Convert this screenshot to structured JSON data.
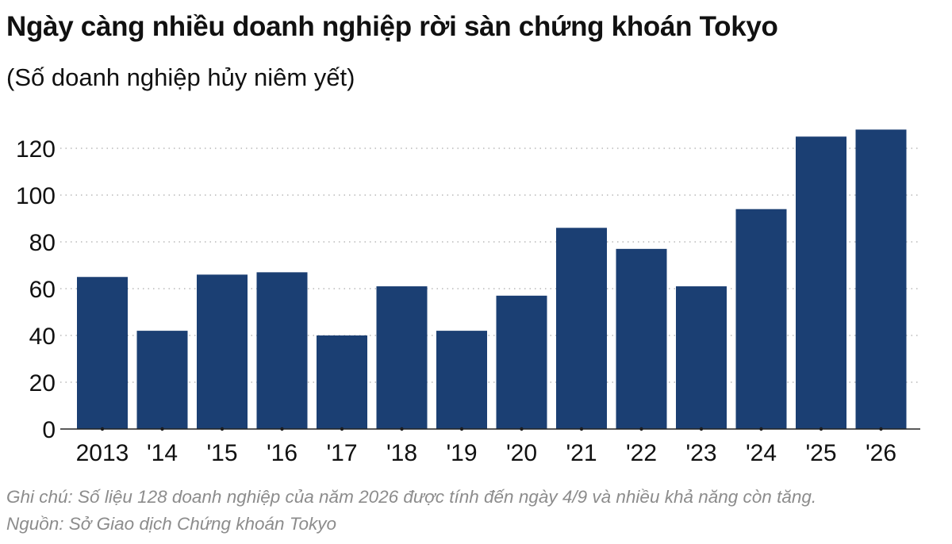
{
  "chart_data": {
    "type": "bar",
    "title": "Ngày càng nhiều doanh nghiệp rời sàn chứng khoán Tokyo",
    "subtitle": "(Số doanh nghiệp hủy niêm yết)",
    "categories": [
      "2013",
      "'14",
      "'15",
      "'16",
      "'17",
      "'18",
      "'19",
      "'20",
      "'21",
      "'22",
      "'23",
      "'24",
      "'25",
      "'26"
    ],
    "values": [
      65,
      42,
      66,
      67,
      40,
      61,
      42,
      57,
      86,
      77,
      61,
      94,
      125,
      128
    ],
    "xlabel": "",
    "ylabel": "",
    "ylim": [
      0,
      130
    ],
    "yticks": [
      0,
      20,
      40,
      60,
      80,
      100,
      120
    ],
    "grid": "horizontal dotted",
    "bar_color": "#1b3f73",
    "note": "Ghi chú: Số liệu 128 doanh nghiệp của năm 2026 được tính đến ngày 4/9 và nhiều khả năng còn tăng.",
    "source": "Nguồn: Sở Giao dịch Chứng khoán Tokyo"
  }
}
